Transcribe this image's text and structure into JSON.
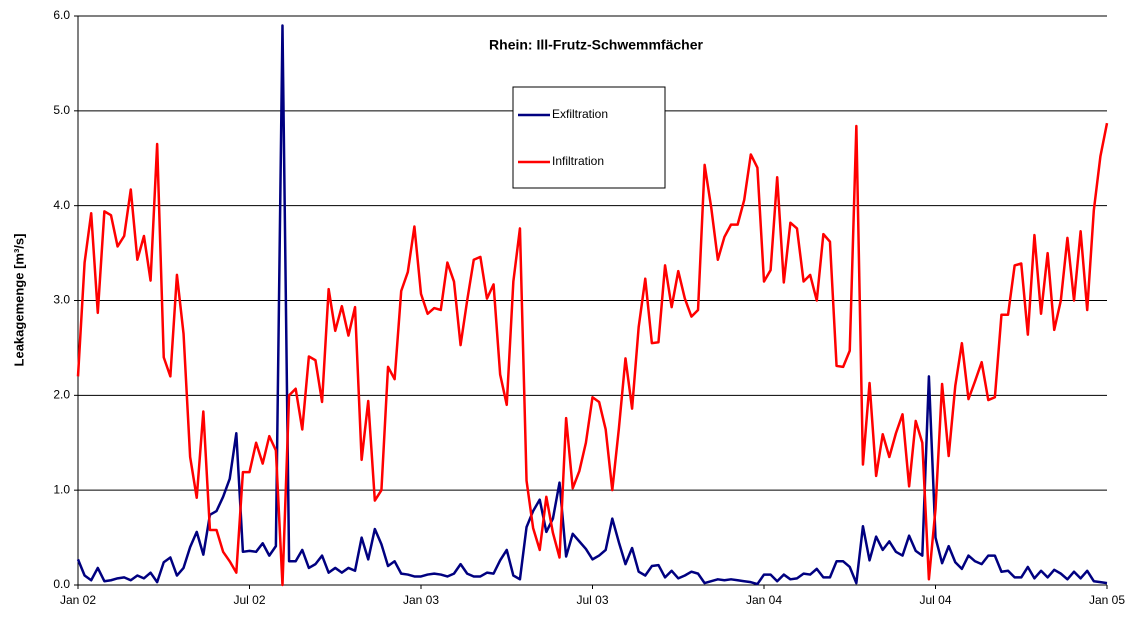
{
  "chart_data": {
    "type": "line",
    "title": "Rhein: Ill-Frutz-Schwemmfächer",
    "y_label": "Leakagemenge [m³/s]",
    "x": [
      0,
      1,
      2,
      3,
      4,
      5,
      6,
      7,
      8,
      9,
      10,
      11,
      12,
      13,
      14,
      15,
      16,
      17,
      18,
      19,
      20,
      21,
      22,
      23,
      24,
      25,
      26,
      27,
      28,
      29,
      30,
      31,
      32,
      33,
      34,
      35,
      36,
      37,
      38,
      39,
      40,
      41,
      42,
      43,
      44,
      45,
      46,
      47,
      48,
      49,
      50,
      51,
      52,
      53,
      54,
      55,
      56,
      57,
      58,
      59,
      60,
      61,
      62,
      63,
      64,
      65,
      66,
      67,
      68,
      69,
      70,
      71,
      72,
      73,
      74,
      75,
      76,
      77,
      78,
      79,
      80,
      81,
      82,
      83,
      84,
      85,
      86,
      87,
      88,
      89,
      90,
      91,
      92,
      93,
      94,
      95,
      96,
      97,
      98,
      99,
      100,
      101,
      102,
      103,
      104,
      105,
      106,
      107,
      108,
      109,
      110,
      111,
      112,
      113,
      114,
      115,
      116,
      117,
      118,
      119,
      120,
      121,
      122,
      123,
      124,
      125,
      126,
      127,
      128,
      129,
      130,
      131,
      132,
      133,
      134,
      135,
      136,
      137,
      138,
      139,
      140,
      141,
      142,
      143,
      144,
      145,
      146,
      147,
      148,
      149,
      150,
      151,
      152,
      153,
      154,
      155,
      156
    ],
    "xlim": [
      0,
      156
    ],
    "xticks": [
      {
        "value": 0,
        "label": "Jan 02"
      },
      {
        "value": 26,
        "label": "Jul 02"
      },
      {
        "value": 52,
        "label": "Jan 03"
      },
      {
        "value": 78,
        "label": "Jul 03"
      },
      {
        "value": 104,
        "label": "Jan 04"
      },
      {
        "value": 130,
        "label": "Jul 04"
      },
      {
        "value": 156,
        "label": "Jan 05"
      }
    ],
    "ylim": [
      0,
      6
    ],
    "yticks": [
      {
        "value": 0,
        "label": "0.0"
      },
      {
        "value": 1,
        "label": "1.0"
      },
      {
        "value": 2,
        "label": "2.0"
      },
      {
        "value": 3,
        "label": "3.0"
      },
      {
        "value": 4,
        "label": "4.0"
      },
      {
        "value": 5,
        "label": "5.0"
      },
      {
        "value": 6,
        "label": "6.0"
      }
    ],
    "grid": true,
    "series": [
      {
        "name": "Exfiltration",
        "color": "#000080",
        "values": [
          0.27,
          0.1,
          0.05,
          0.18,
          0.04,
          0.05,
          0.07,
          0.08,
          0.05,
          0.1,
          0.07,
          0.13,
          0.03,
          0.24,
          0.29,
          0.1,
          0.18,
          0.4,
          0.56,
          0.32,
          0.74,
          0.78,
          0.93,
          1.12,
          1.6,
          0.35,
          0.36,
          0.35,
          0.44,
          0.31,
          0.41,
          5.9,
          0.25,
          0.25,
          0.37,
          0.18,
          0.22,
          0.31,
          0.13,
          0.18,
          0.13,
          0.18,
          0.15,
          0.5,
          0.27,
          0.59,
          0.43,
          0.2,
          0.25,
          0.12,
          0.11,
          0.09,
          0.09,
          0.11,
          0.12,
          0.11,
          0.09,
          0.12,
          0.22,
          0.12,
          0.09,
          0.09,
          0.13,
          0.12,
          0.26,
          0.37,
          0.1,
          0.06,
          0.61,
          0.78,
          0.9,
          0.56,
          0.7,
          1.08,
          0.3,
          0.54,
          0.46,
          0.38,
          0.27,
          0.31,
          0.37,
          0.7,
          0.45,
          0.22,
          0.39,
          0.14,
          0.1,
          0.2,
          0.21,
          0.08,
          0.15,
          0.07,
          0.1,
          0.14,
          0.12,
          0.02,
          0.04,
          0.06,
          0.05,
          0.06,
          0.05,
          0.04,
          0.03,
          0.01,
          0.11,
          0.11,
          0.04,
          0.11,
          0.06,
          0.07,
          0.12,
          0.11,
          0.17,
          0.08,
          0.08,
          0.25,
          0.25,
          0.19,
          0.02,
          0.62,
          0.26,
          0.51,
          0.37,
          0.46,
          0.35,
          0.31,
          0.52,
          0.36,
          0.31,
          2.2,
          0.5,
          0.23,
          0.41,
          0.24,
          0.17,
          0.31,
          0.25,
          0.22,
          0.31,
          0.31,
          0.14,
          0.15,
          0.08,
          0.08,
          0.19,
          0.07,
          0.15,
          0.08,
          0.16,
          0.12,
          0.06,
          0.14,
          0.07,
          0.15,
          0.04,
          0.03,
          0.02
        ]
      },
      {
        "name": "Infiltration",
        "color": "#ff0000",
        "values": [
          2.2,
          3.4,
          3.92,
          2.87,
          3.94,
          3.9,
          3.57,
          3.68,
          4.17,
          3.43,
          3.68,
          3.21,
          4.65,
          2.4,
          2.2,
          3.27,
          2.65,
          1.35,
          0.92,
          1.83,
          0.58,
          0.58,
          0.35,
          0.25,
          0.13,
          1.19,
          1.19,
          1.5,
          1.28,
          1.57,
          1.42,
          0.0,
          2.0,
          2.07,
          1.64,
          2.41,
          2.37,
          1.93,
          3.12,
          2.68,
          2.94,
          2.63,
          2.93,
          1.32,
          1.94,
          0.89,
          1.0,
          2.3,
          2.17,
          3.1,
          3.3,
          3.78,
          3.07,
          2.86,
          2.92,
          2.9,
          3.4,
          3.2,
          2.53,
          3.0,
          3.43,
          3.46,
          3.02,
          3.17,
          2.22,
          1.9,
          3.2,
          3.76,
          1.1,
          0.6,
          0.37,
          0.93,
          0.55,
          0.29,
          1.76,
          1.02,
          1.2,
          1.5,
          1.98,
          1.93,
          1.64,
          1.0,
          1.65,
          2.39,
          1.86,
          2.72,
          3.23,
          2.55,
          2.56,
          3.37,
          2.93,
          3.31,
          3.02,
          2.83,
          2.9,
          4.43,
          3.98,
          3.43,
          3.67,
          3.8,
          3.8,
          4.06,
          4.54,
          4.4,
          3.2,
          3.32,
          4.3,
          3.19,
          3.82,
          3.76,
          3.2,
          3.27,
          3.0,
          3.7,
          3.62,
          2.31,
          2.3,
          2.47,
          4.84,
          1.27,
          2.13,
          1.15,
          1.59,
          1.35,
          1.6,
          1.8,
          1.04,
          1.73,
          1.5,
          0.06,
          0.8,
          2.12,
          1.36,
          2.1,
          2.55,
          1.96,
          2.15,
          2.35,
          1.95,
          1.98,
          2.85,
          2.85,
          3.37,
          3.39,
          2.64,
          3.69,
          2.86,
          3.5,
          2.69,
          3.0,
          3.66,
          3.0,
          3.73,
          2.9,
          3.95,
          4.52,
          4.87
        ]
      }
    ]
  }
}
